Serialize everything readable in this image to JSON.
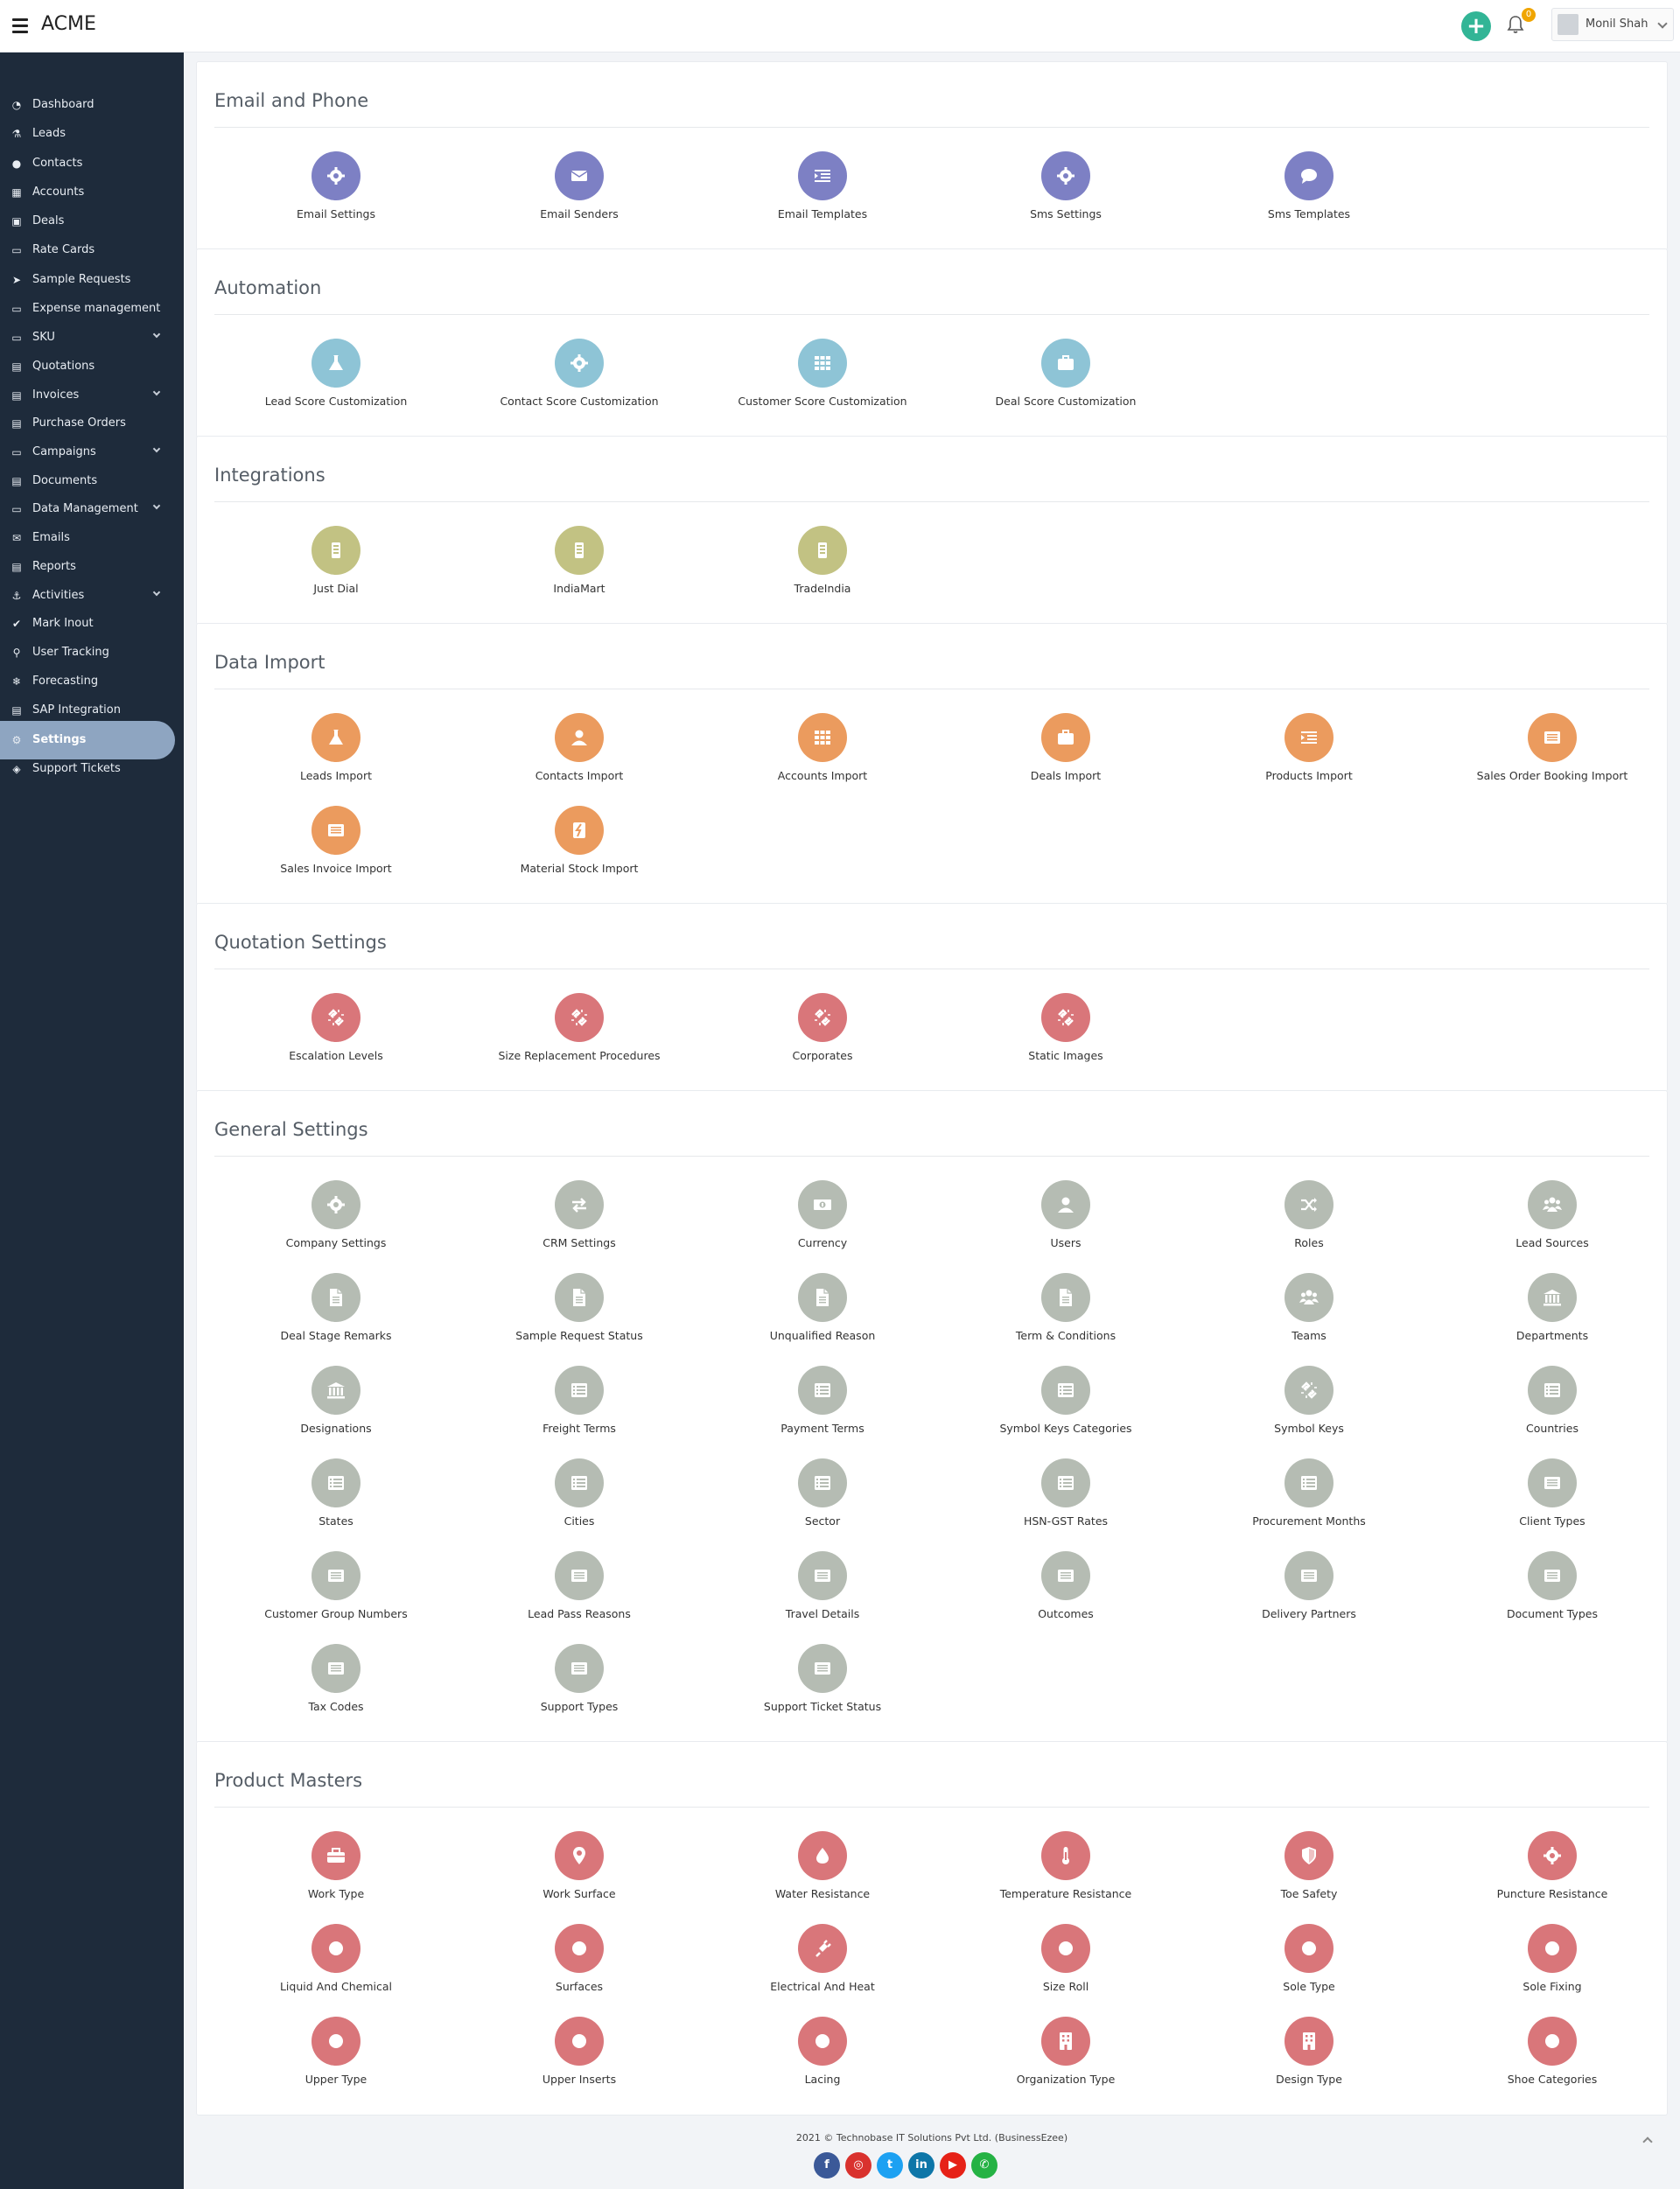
{
  "header": {
    "brand": "ACME",
    "notification_count": "0",
    "user_name": "Monil Shah"
  },
  "sidebar": {
    "items": [
      {
        "label": "Dashboard",
        "icon": "dashboard-icon"
      },
      {
        "label": "Leads",
        "icon": "flask-icon"
      },
      {
        "label": "Contacts",
        "icon": "user-icon"
      },
      {
        "label": "Accounts",
        "icon": "grid-icon"
      },
      {
        "label": "Deals",
        "icon": "briefcase-icon"
      },
      {
        "label": "Rate Cards",
        "icon": "money-icon"
      },
      {
        "label": "Sample Requests",
        "icon": "paper-plane-icon"
      },
      {
        "label": "Expense management",
        "icon": "money-icon"
      },
      {
        "label": "SKU",
        "icon": "money-icon",
        "has_submenu": true
      },
      {
        "label": "Quotations",
        "icon": "file-icon"
      },
      {
        "label": "Invoices",
        "icon": "file-icon",
        "has_submenu": true
      },
      {
        "label": "Purchase Orders",
        "icon": "file-icon"
      },
      {
        "label": "Campaigns",
        "icon": "money-icon",
        "has_submenu": true
      },
      {
        "label": "Documents",
        "icon": "file-icon"
      },
      {
        "label": "Data Management",
        "icon": "money-icon",
        "has_submenu": true
      },
      {
        "label": "Emails",
        "icon": "envelope-icon"
      },
      {
        "label": "Reports",
        "icon": "file-icon"
      },
      {
        "label": "Activities",
        "icon": "anchor-icon",
        "has_submenu": true
      },
      {
        "label": "Mark Inout",
        "icon": "check-icon"
      },
      {
        "label": "User Tracking",
        "icon": "map-marker-icon"
      },
      {
        "label": "Forecasting",
        "icon": "snowflake-icon"
      },
      {
        "label": "SAP Integration",
        "icon": "file-icon"
      },
      {
        "label": "Settings",
        "icon": "gear-icon",
        "active": true
      },
      {
        "label": "Support Tickets",
        "icon": "ticket-icon"
      }
    ]
  },
  "colors": {
    "purple": "#7d80c4",
    "teal": "#8ec4d6",
    "olive": "#c2c283",
    "orange": "#eb9b5e",
    "red": "#d9767a",
    "gray": "#b5bcb3",
    "sidebar_bg": "#1e2b3b",
    "active": "#8ea5c1",
    "accent": "#32b596"
  },
  "sections": [
    {
      "title": "Email and Phone",
      "color": "purple",
      "items": [
        {
          "label": "Email Settings",
          "icon": "gear-icon"
        },
        {
          "label": "Email Senders",
          "icon": "envelope-icon"
        },
        {
          "label": "Email Templates",
          "icon": "indent-list-icon"
        },
        {
          "label": "Sms Settings",
          "icon": "gear-icon"
        },
        {
          "label": "Sms Templates",
          "icon": "comment-icon"
        }
      ]
    },
    {
      "title": "Automation",
      "color": "teal",
      "items": [
        {
          "label": "Lead Score Customization",
          "icon": "flask-icon"
        },
        {
          "label": "Contact Score Customization",
          "icon": "gear-icon"
        },
        {
          "label": "Customer Score Customization",
          "icon": "grid-icon"
        },
        {
          "label": "Deal Score Customization",
          "icon": "briefcase-icon"
        }
      ]
    },
    {
      "title": "Integrations",
      "color": "olive",
      "items": [
        {
          "label": "Just Dial",
          "icon": "tablet-icon"
        },
        {
          "label": "IndiaMart",
          "icon": "tablet-icon"
        },
        {
          "label": "TradeIndia",
          "icon": "tablet-icon"
        }
      ]
    },
    {
      "title": "Data Import",
      "color": "orange",
      "items": [
        {
          "label": "Leads Import",
          "icon": "flask-icon"
        },
        {
          "label": "Contacts Import",
          "icon": "user-icon"
        },
        {
          "label": "Accounts Import",
          "icon": "grid-icon"
        },
        {
          "label": "Deals Import",
          "icon": "briefcase-icon"
        },
        {
          "label": "Products Import",
          "icon": "indent-list-icon"
        },
        {
          "label": "Sales Order Booking Import",
          "icon": "card-list-icon"
        },
        {
          "label": "Sales Invoice Import",
          "icon": "card-list-icon"
        },
        {
          "label": "Material Stock Import",
          "icon": "inventory-icon"
        }
      ]
    },
    {
      "title": "Quotation Settings",
      "color": "red",
      "items": [
        {
          "label": "Escalation Levels",
          "icon": "unlink-icon"
        },
        {
          "label": "Size Replacement Procedures",
          "icon": "unlink-icon"
        },
        {
          "label": "Corporates",
          "icon": "unlink-icon"
        },
        {
          "label": "Static Images",
          "icon": "unlink-icon"
        }
      ]
    },
    {
      "title": "General Settings",
      "color": "gray",
      "items": [
        {
          "label": "Company Settings",
          "icon": "gear-icon"
        },
        {
          "label": "CRM Settings",
          "icon": "exchange-icon"
        },
        {
          "label": "Currency",
          "icon": "money-icon"
        },
        {
          "label": "Users",
          "icon": "user-icon"
        },
        {
          "label": "Roles",
          "icon": "shuffle-icon"
        },
        {
          "label": "Lead Sources",
          "icon": "users-icon"
        },
        {
          "label": "Deal Stage Remarks",
          "icon": "file-icon"
        },
        {
          "label": "Sample Request Status",
          "icon": "file-icon"
        },
        {
          "label": "Unqualified Reason",
          "icon": "file-icon"
        },
        {
          "label": "Term & Conditions",
          "icon": "file-icon"
        },
        {
          "label": "Teams",
          "icon": "users-icon"
        },
        {
          "label": "Departments",
          "icon": "bank-icon"
        },
        {
          "label": "Designations",
          "icon": "bank-icon"
        },
        {
          "label": "Freight Terms",
          "icon": "list-icon"
        },
        {
          "label": "Payment Terms",
          "icon": "list-icon"
        },
        {
          "label": "Symbol Keys Categories",
          "icon": "list-icon"
        },
        {
          "label": "Symbol Keys",
          "icon": "unlink-icon"
        },
        {
          "label": "Countries",
          "icon": "list-icon"
        },
        {
          "label": "States",
          "icon": "list-icon"
        },
        {
          "label": "Cities",
          "icon": "list-icon"
        },
        {
          "label": "Sector",
          "icon": "list-icon"
        },
        {
          "label": "HSN-GST Rates",
          "icon": "list-icon"
        },
        {
          "label": "Procurement Months",
          "icon": "list-icon"
        },
        {
          "label": "Client Types",
          "icon": "card-list-icon"
        },
        {
          "label": "Customer Group Numbers",
          "icon": "card-list-icon"
        },
        {
          "label": "Lead Pass Reasons",
          "icon": "card-list-icon"
        },
        {
          "label": "Travel Details",
          "icon": "card-list-icon"
        },
        {
          "label": "Outcomes",
          "icon": "card-list-icon"
        },
        {
          "label": "Delivery Partners",
          "icon": "card-list-icon"
        },
        {
          "label": "Document Types",
          "icon": "card-list-icon"
        },
        {
          "label": "Tax Codes",
          "icon": "card-list-icon"
        },
        {
          "label": "Support Types",
          "icon": "card-list-icon"
        },
        {
          "label": "Support Ticket Status",
          "icon": "card-list-icon"
        }
      ]
    },
    {
      "title": "Product Masters",
      "color": "red",
      "items": [
        {
          "label": "Work Type",
          "icon": "toolbox-icon"
        },
        {
          "label": "Work Surface",
          "icon": "map-marker-icon"
        },
        {
          "label": "Water Resistance",
          "icon": "droplet-icon"
        },
        {
          "label": "Temperature Resistance",
          "icon": "thermometer-icon"
        },
        {
          "label": "Toe Safety",
          "icon": "shield-icon"
        },
        {
          "label": "Puncture Resistance",
          "icon": "gear-icon"
        },
        {
          "label": "Liquid And Chemical",
          "icon": "circle-icon"
        },
        {
          "label": "Surfaces",
          "icon": "circle-icon"
        },
        {
          "label": "Electrical And Heat",
          "icon": "plug-icon"
        },
        {
          "label": "Size Roll",
          "icon": "circle-icon"
        },
        {
          "label": "Sole Type",
          "icon": "circle-icon"
        },
        {
          "label": "Sole Fixing",
          "icon": "circle-icon"
        },
        {
          "label": "Upper Type",
          "icon": "circle-icon"
        },
        {
          "label": "Upper Inserts",
          "icon": "circle-icon"
        },
        {
          "label": "Lacing",
          "icon": "circle-icon"
        },
        {
          "label": "Organization Type",
          "icon": "building-icon"
        },
        {
          "label": "Design Type",
          "icon": "building-icon"
        },
        {
          "label": "Shoe Categories",
          "icon": "circle-icon"
        }
      ]
    }
  ],
  "footer": {
    "copyright": "2021 © Technobase IT Solutions Pvt Ltd. (BusinessEzee)",
    "socials": [
      {
        "name": "facebook",
        "glyph": "f",
        "color": "#3b5998"
      },
      {
        "name": "instagram",
        "glyph": "◎",
        "color": "#d9322e"
      },
      {
        "name": "twitter",
        "glyph": "t",
        "color": "#1da1f2"
      },
      {
        "name": "linkedin",
        "glyph": "in",
        "color": "#0e76a8"
      },
      {
        "name": "youtube",
        "glyph": "▶",
        "color": "#e62117"
      },
      {
        "name": "whatsapp",
        "glyph": "✆",
        "color": "#25b244"
      }
    ]
  }
}
